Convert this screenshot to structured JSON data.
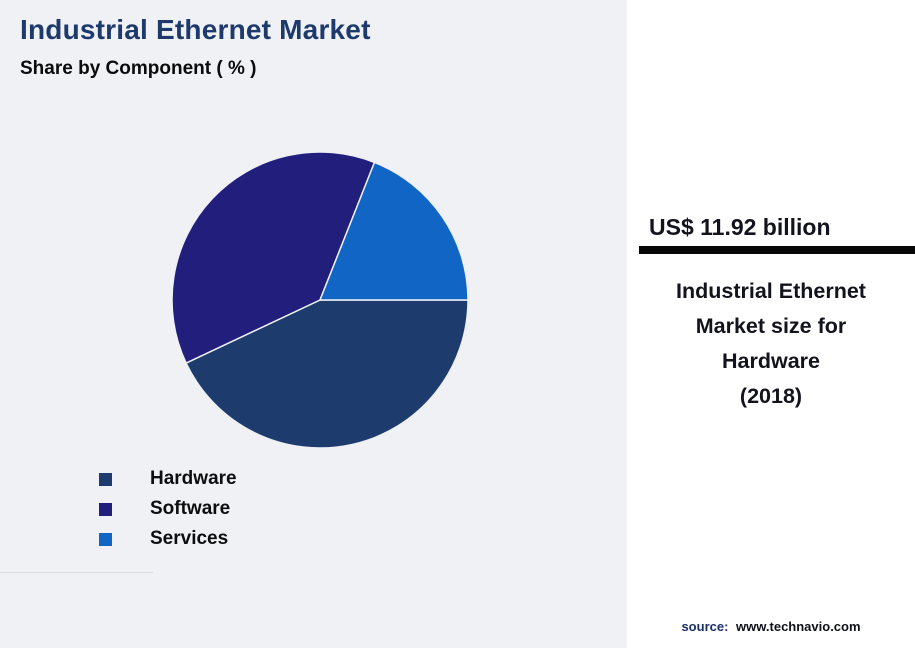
{
  "header": {
    "title": "Industrial Ethernet Market",
    "subtitle": "Share by Component ( % )",
    "title_color": "#1e3a6d"
  },
  "chart_data": {
    "type": "pie",
    "title": "Industrial Ethernet Market - Share by Component (%)",
    "categories": [
      "Hardware",
      "Software",
      "Services"
    ],
    "values": [
      43,
      38,
      19
    ],
    "unit": "%",
    "colors": [
      "#1d3c6d",
      "#221e7c",
      "#1166c5"
    ],
    "start_angle_deg": 90,
    "legend_position": "bottom-left",
    "labels_shown": false
  },
  "panel": {
    "stat_value": "US$ 11.92 billion",
    "stat_label_lines": [
      "Industrial Ethernet",
      "Market size for",
      "Hardware",
      "(2018)"
    ],
    "source_prefix": "source:",
    "source_url": "www.technavio.com"
  }
}
